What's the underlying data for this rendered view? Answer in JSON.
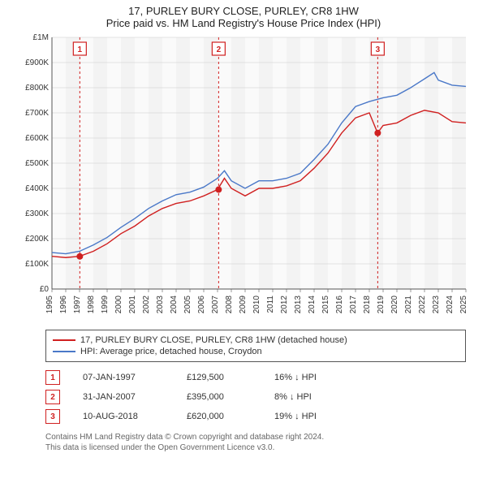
{
  "title": "17, PURLEY BURY CLOSE, PURLEY, CR8 1HW",
  "subtitle": "Price paid vs. HM Land Registry's House Price Index (HPI)",
  "chart": {
    "type": "line",
    "background_color": "#ffffff",
    "plot_bg_color": "#fafafa",
    "plot_bg_shade": "#f3f3f3",
    "grid_color": "#cccccc",
    "axis_color": "#555555",
    "text_color": "#333333",
    "label_fontsize": 11,
    "tick_fontsize": 10,
    "x_axis": {
      "min": 1995,
      "max": 2025,
      "ticks": [
        1995,
        1996,
        1997,
        1998,
        1999,
        2000,
        2001,
        2002,
        2003,
        2004,
        2005,
        2006,
        2007,
        2008,
        2009,
        2010,
        2011,
        2012,
        2013,
        2014,
        2015,
        2016,
        2017,
        2018,
        2019,
        2020,
        2021,
        2022,
        2023,
        2024,
        2025
      ],
      "tick_rotation": -90
    },
    "y_axis": {
      "min": 0,
      "max": 1000000,
      "tick_step": 100000,
      "tick_labels": [
        "£0",
        "£100K",
        "£200K",
        "£300K",
        "£400K",
        "£500K",
        "£600K",
        "£700K",
        "£800K",
        "£900K",
        "£1M"
      ]
    },
    "series": [
      {
        "name": "property",
        "color": "#d02020",
        "width": 1.4,
        "data": [
          [
            1995,
            130000
          ],
          [
            1996,
            125000
          ],
          [
            1997,
            130000
          ],
          [
            1998,
            150000
          ],
          [
            1999,
            180000
          ],
          [
            2000,
            220000
          ],
          [
            2001,
            250000
          ],
          [
            2002,
            290000
          ],
          [
            2003,
            320000
          ],
          [
            2004,
            340000
          ],
          [
            2005,
            350000
          ],
          [
            2006,
            370000
          ],
          [
            2007,
            395000
          ],
          [
            2007.5,
            440000
          ],
          [
            2008,
            400000
          ],
          [
            2009,
            370000
          ],
          [
            2010,
            400000
          ],
          [
            2011,
            400000
          ],
          [
            2012,
            410000
          ],
          [
            2013,
            430000
          ],
          [
            2014,
            480000
          ],
          [
            2015,
            540000
          ],
          [
            2016,
            620000
          ],
          [
            2017,
            680000
          ],
          [
            2018,
            700000
          ],
          [
            2018.6,
            620000
          ],
          [
            2019,
            650000
          ],
          [
            2020,
            660000
          ],
          [
            2021,
            690000
          ],
          [
            2022,
            710000
          ],
          [
            2023,
            700000
          ],
          [
            2024,
            665000
          ],
          [
            2025,
            660000
          ]
        ]
      },
      {
        "name": "hpi",
        "color": "#4a78c8",
        "width": 1.4,
        "data": [
          [
            1995,
            145000
          ],
          [
            1996,
            140000
          ],
          [
            1997,
            150000
          ],
          [
            1998,
            175000
          ],
          [
            1999,
            205000
          ],
          [
            2000,
            245000
          ],
          [
            2001,
            280000
          ],
          [
            2002,
            320000
          ],
          [
            2003,
            350000
          ],
          [
            2004,
            375000
          ],
          [
            2005,
            385000
          ],
          [
            2006,
            405000
          ],
          [
            2007,
            440000
          ],
          [
            2007.5,
            470000
          ],
          [
            2008,
            430000
          ],
          [
            2009,
            400000
          ],
          [
            2010,
            430000
          ],
          [
            2011,
            430000
          ],
          [
            2012,
            440000
          ],
          [
            2013,
            460000
          ],
          [
            2014,
            515000
          ],
          [
            2015,
            575000
          ],
          [
            2016,
            660000
          ],
          [
            2017,
            725000
          ],
          [
            2018,
            745000
          ],
          [
            2019,
            760000
          ],
          [
            2020,
            770000
          ],
          [
            2021,
            800000
          ],
          [
            2022,
            835000
          ],
          [
            2022.7,
            860000
          ],
          [
            2023,
            830000
          ],
          [
            2024,
            810000
          ],
          [
            2025,
            805000
          ]
        ]
      }
    ],
    "transactions": [
      {
        "n": 1,
        "year": 1997.02,
        "price": 129500
      },
      {
        "n": 2,
        "year": 2007.08,
        "price": 395000
      },
      {
        "n": 3,
        "year": 2018.61,
        "price": 620000
      }
    ],
    "marker_radius": 4,
    "marker_fill": "#d02020",
    "dashed_line_color": "#d02020",
    "dashed_pattern": "3,3"
  },
  "legend": {
    "series1": {
      "label": "17, PURLEY BURY CLOSE, PURLEY, CR8 1HW (detached house)",
      "color": "#d02020"
    },
    "series2": {
      "label": "HPI: Average price, detached house, Croydon",
      "color": "#4a78c8"
    }
  },
  "trans_table": [
    {
      "n": "1",
      "date": "07-JAN-1997",
      "price": "£129,500",
      "diff": "16% ↓ HPI"
    },
    {
      "n": "2",
      "date": "31-JAN-2007",
      "price": "£395,000",
      "diff": "8% ↓ HPI"
    },
    {
      "n": "3",
      "date": "10-AUG-2018",
      "price": "£620,000",
      "diff": "19% ↓ HPI"
    }
  ],
  "footnote_line1": "Contains HM Land Registry data © Crown copyright and database right 2024.",
  "footnote_line2": "This data is licensed under the Open Government Licence v3.0."
}
